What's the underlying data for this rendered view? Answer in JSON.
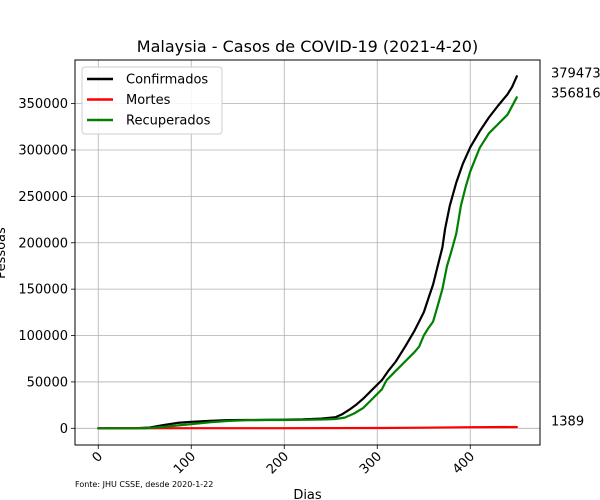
{
  "chart_data": {
    "type": "line",
    "title": "Malaysia - Casos de COVID-19 (2021-4-20)",
    "xlabel": "Dias",
    "ylabel": "Pessoas",
    "xlim": [
      -25,
      475
    ],
    "ylim": [
      -18000,
      397000
    ],
    "x_ticks": [
      0,
      100,
      200,
      300,
      400
    ],
    "y_ticks": [
      0,
      50000,
      100000,
      150000,
      200000,
      250000,
      300000,
      350000
    ],
    "grid": true,
    "legend_position": "top-left",
    "source_note": "Fonte: JHU CSSE, desde 2020-1-22",
    "series": [
      {
        "name": "Confirmados",
        "color": "#000000",
        "end_label": "379473",
        "points": [
          [
            0,
            0
          ],
          [
            40,
            100
          ],
          [
            55,
            800
          ],
          [
            70,
            3500
          ],
          [
            85,
            5800
          ],
          [
            100,
            7000
          ],
          [
            120,
            8000
          ],
          [
            140,
            8800
          ],
          [
            160,
            9000
          ],
          [
            180,
            9100
          ],
          [
            200,
            9300
          ],
          [
            220,
            9600
          ],
          [
            240,
            10500
          ],
          [
            255,
            12000
          ],
          [
            262,
            15000
          ],
          [
            270,
            20000
          ],
          [
            278,
            26000
          ],
          [
            285,
            32000
          ],
          [
            295,
            42000
          ],
          [
            305,
            52000
          ],
          [
            312,
            62000
          ],
          [
            320,
            72000
          ],
          [
            330,
            88000
          ],
          [
            340,
            105000
          ],
          [
            345,
            115000
          ],
          [
            350,
            125000
          ],
          [
            355,
            140000
          ],
          [
            360,
            155000
          ],
          [
            365,
            175000
          ],
          [
            370,
            195000
          ],
          [
            373,
            215000
          ],
          [
            378,
            240000
          ],
          [
            385,
            265000
          ],
          [
            392,
            285000
          ],
          [
            400,
            303000
          ],
          [
            410,
            320000
          ],
          [
            420,
            335000
          ],
          [
            430,
            348000
          ],
          [
            440,
            360000
          ],
          [
            445,
            368000
          ],
          [
            450,
            379473
          ]
        ]
      },
      {
        "name": "Mortes",
        "color": "#ff0000",
        "end_label": "1389",
        "points": [
          [
            0,
            0
          ],
          [
            100,
            120
          ],
          [
            200,
            140
          ],
          [
            300,
            300
          ],
          [
            350,
            700
          ],
          [
            400,
            1200
          ],
          [
            450,
            1389
          ]
        ]
      },
      {
        "name": "Recuperados",
        "color": "#008000",
        "end_label": "356816",
        "points": [
          [
            0,
            0
          ],
          [
            50,
            0
          ],
          [
            70,
            1500
          ],
          [
            85,
            3000
          ],
          [
            100,
            4500
          ],
          [
            120,
            6500
          ],
          [
            140,
            8000
          ],
          [
            160,
            8700
          ],
          [
            180,
            8900
          ],
          [
            200,
            9000
          ],
          [
            220,
            9200
          ],
          [
            240,
            9500
          ],
          [
            255,
            10000
          ],
          [
            265,
            11500
          ],
          [
            275,
            16000
          ],
          [
            285,
            22000
          ],
          [
            295,
            32000
          ],
          [
            305,
            42000
          ],
          [
            310,
            52000
          ],
          [
            320,
            62000
          ],
          [
            330,
            72000
          ],
          [
            340,
            82000
          ],
          [
            345,
            88000
          ],
          [
            350,
            100000
          ],
          [
            355,
            108000
          ],
          [
            360,
            115000
          ],
          [
            365,
            132000
          ],
          [
            370,
            150000
          ],
          [
            375,
            175000
          ],
          [
            380,
            192000
          ],
          [
            385,
            210000
          ],
          [
            390,
            240000
          ],
          [
            395,
            260000
          ],
          [
            400,
            277000
          ],
          [
            410,
            302000
          ],
          [
            420,
            318000
          ],
          [
            430,
            328000
          ],
          [
            440,
            338000
          ],
          [
            450,
            356816
          ]
        ]
      }
    ]
  }
}
